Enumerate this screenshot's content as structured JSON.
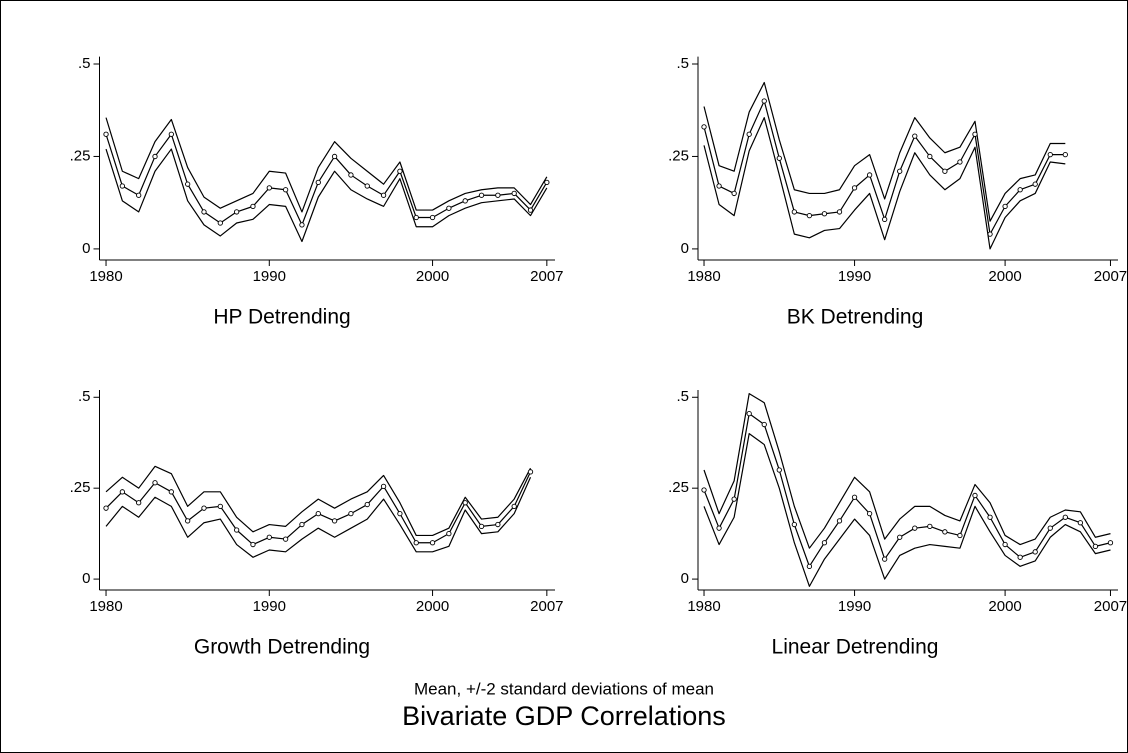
{
  "note": "Mean, +/-2 standard deviations of mean",
  "title": "Bivariate GDP Correlations",
  "chart_data": [
    {
      "type": "line",
      "title": "HP Detrending",
      "x": [
        1980,
        1981,
        1982,
        1983,
        1984,
        1985,
        1986,
        1987,
        1988,
        1989,
        1990,
        1991,
        1992,
        1993,
        1994,
        1995,
        1996,
        1997,
        1998,
        1999,
        2000,
        2001,
        2002,
        2003,
        2004,
        2005,
        2006,
        2007
      ],
      "xlim": [
        1979.6,
        2007.5
      ],
      "xticks": [
        1980,
        1990,
        2000,
        2007
      ],
      "ylim": [
        -0.03,
        0.52
      ],
      "yticks": [
        0,
        {
          "value": 0.25,
          "label": ".25"
        },
        {
          "value": 0.5,
          "label": ".5"
        }
      ],
      "series": [
        {
          "color": "#000000",
          "marker": false,
          "values": [
            0.355,
            0.21,
            0.19,
            0.29,
            0.35,
            0.22,
            0.14,
            0.11,
            0.13,
            0.15,
            0.21,
            0.205,
            0.1,
            0.22,
            0.29,
            0.245,
            0.21,
            0.175,
            0.235,
            0.105,
            0.105,
            0.13,
            0.15,
            0.16,
            0.165,
            0.165,
            0.12,
            0.195
          ]
        },
        {
          "color": "#000000",
          "marker": true,
          "values": [
            0.31,
            0.17,
            0.145,
            0.25,
            0.31,
            0.175,
            0.1,
            0.07,
            0.1,
            0.115,
            0.165,
            0.16,
            0.065,
            0.18,
            0.25,
            0.2,
            0.17,
            0.145,
            0.21,
            0.085,
            0.085,
            0.11,
            0.13,
            0.145,
            0.145,
            0.15,
            0.105,
            0.18
          ]
        },
        {
          "color": "#000000",
          "marker": false,
          "values": [
            0.27,
            0.13,
            0.1,
            0.21,
            0.27,
            0.13,
            0.065,
            0.035,
            0.07,
            0.08,
            0.12,
            0.115,
            0.02,
            0.14,
            0.21,
            0.16,
            0.135,
            0.115,
            0.19,
            0.06,
            0.06,
            0.09,
            0.11,
            0.125,
            0.13,
            0.135,
            0.09,
            0.165
          ]
        }
      ]
    },
    {
      "type": "line",
      "title": "BK Detrending",
      "x": [
        1980,
        1981,
        1982,
        1983,
        1984,
        1985,
        1986,
        1987,
        1988,
        1989,
        1990,
        1991,
        1992,
        1993,
        1994,
        1995,
        1996,
        1997,
        1998,
        1999,
        2000,
        2001,
        2002,
        2003,
        2004,
        2005,
        2006,
        2007
      ],
      "xlim": [
        1979.6,
        2007.5
      ],
      "xticks": [
        1980,
        1990,
        2000,
        2007
      ],
      "ylim": [
        -0.03,
        0.52
      ],
      "yticks": [
        0,
        {
          "value": 0.25,
          "label": ".25"
        },
        {
          "value": 0.5,
          "label": ".5"
        }
      ],
      "series": [
        {
          "color": "#000000",
          "marker": false,
          "values": [
            0.385,
            0.225,
            0.21,
            0.37,
            0.45,
            0.295,
            0.16,
            0.15,
            0.15,
            0.16,
            0.225,
            0.255,
            0.135,
            0.26,
            0.355,
            0.3,
            0.26,
            0.275,
            0.345,
            0.075,
            0.15,
            0.19,
            0.2,
            0.285,
            0.285,
            null,
            null,
            null
          ]
        },
        {
          "color": "#000000",
          "marker": true,
          "values": [
            0.33,
            0.17,
            0.15,
            0.31,
            0.4,
            0.245,
            0.1,
            0.09,
            0.095,
            0.1,
            0.165,
            0.2,
            0.08,
            0.21,
            0.305,
            0.25,
            0.21,
            0.235,
            0.31,
            0.04,
            0.115,
            0.16,
            0.175,
            0.255,
            0.255,
            null,
            null,
            null
          ]
        },
        {
          "color": "#000000",
          "marker": false,
          "values": [
            0.28,
            0.12,
            0.09,
            0.265,
            0.355,
            0.2,
            0.04,
            0.03,
            0.05,
            0.055,
            0.105,
            0.15,
            0.025,
            0.155,
            0.26,
            0.2,
            0.16,
            0.19,
            0.275,
            0,
            0.085,
            0.13,
            0.15,
            0.235,
            0.23,
            null,
            null,
            null
          ]
        }
      ]
    },
    {
      "type": "line",
      "title": "Growth Detrending",
      "x": [
        1980,
        1981,
        1982,
        1983,
        1984,
        1985,
        1986,
        1987,
        1988,
        1989,
        1990,
        1991,
        1992,
        1993,
        1994,
        1995,
        1996,
        1997,
        1998,
        1999,
        2000,
        2001,
        2002,
        2003,
        2004,
        2005,
        2006,
        2007
      ],
      "xlim": [
        1979.6,
        2007.5
      ],
      "xticks": [
        1980,
        1990,
        2000,
        2007
      ],
      "ylim": [
        -0.03,
        0.52
      ],
      "yticks": [
        0,
        {
          "value": 0.25,
          "label": ".25"
        },
        {
          "value": 0.5,
          "label": ".5"
        }
      ],
      "series": [
        {
          "color": "#000000",
          "marker": false,
          "values": [
            0.24,
            0.28,
            0.25,
            0.31,
            0.29,
            0.2,
            0.24,
            0.24,
            0.17,
            0.13,
            0.15,
            0.145,
            0.185,
            0.22,
            0.195,
            0.22,
            0.24,
            0.285,
            0.21,
            0.12,
            0.12,
            0.14,
            0.225,
            0.165,
            0.17,
            0.22,
            0.305,
            null
          ]
        },
        {
          "color": "#000000",
          "marker": true,
          "values": [
            0.195,
            0.24,
            0.21,
            0.265,
            0.24,
            0.16,
            0.195,
            0.2,
            0.135,
            0.095,
            0.115,
            0.11,
            0.15,
            0.18,
            0.16,
            0.18,
            0.205,
            0.255,
            0.18,
            0.1,
            0.1,
            0.125,
            0.21,
            0.145,
            0.15,
            0.2,
            0.295,
            null
          ]
        },
        {
          "color": "#000000",
          "marker": false,
          "values": [
            0.145,
            0.2,
            0.17,
            0.225,
            0.2,
            0.115,
            0.155,
            0.165,
            0.095,
            0.06,
            0.08,
            0.075,
            0.11,
            0.14,
            0.115,
            0.14,
            0.165,
            0.22,
            0.15,
            0.075,
            0.075,
            0.09,
            0.19,
            0.125,
            0.13,
            0.18,
            0.28,
            null
          ]
        }
      ]
    },
    {
      "type": "line",
      "title": "Linear Detrending",
      "x": [
        1980,
        1981,
        1982,
        1983,
        1984,
        1985,
        1986,
        1987,
        1988,
        1989,
        1990,
        1991,
        1992,
        1993,
        1994,
        1995,
        1996,
        1997,
        1998,
        1999,
        2000,
        2001,
        2002,
        2003,
        2004,
        2005,
        2006,
        2007
      ],
      "xlim": [
        1979.6,
        2007.5
      ],
      "xticks": [
        1980,
        1990,
        2000,
        2007
      ],
      "ylim": [
        -0.03,
        0.52
      ],
      "yticks": [
        0,
        {
          "value": 0.25,
          "label": ".25"
        },
        {
          "value": 0.5,
          "label": ".5"
        }
      ],
      "series": [
        {
          "color": "#000000",
          "marker": false,
          "values": [
            0.3,
            0.18,
            0.27,
            0.51,
            0.485,
            0.35,
            0.2,
            0.085,
            0.14,
            0.21,
            0.28,
            0.24,
            0.11,
            0.165,
            0.2,
            0.2,
            0.175,
            0.16,
            0.26,
            0.21,
            0.12,
            0.095,
            0.11,
            0.17,
            0.19,
            0.185,
            0.115,
            0.125
          ]
        },
        {
          "color": "#000000",
          "marker": true,
          "values": [
            0.245,
            0.14,
            0.22,
            0.455,
            0.425,
            0.3,
            0.15,
            0.035,
            0.1,
            0.16,
            0.225,
            0.18,
            0.055,
            0.115,
            0.14,
            0.145,
            0.13,
            0.12,
            0.23,
            0.17,
            0.095,
            0.06,
            0.075,
            0.14,
            0.17,
            0.155,
            0.09,
            0.1
          ]
        },
        {
          "color": "#000000",
          "marker": false,
          "values": [
            0.2,
            0.095,
            0.17,
            0.4,
            0.37,
            0.25,
            0.1,
            -0.02,
            0.055,
            0.11,
            0.165,
            0.12,
            0,
            0.065,
            0.085,
            0.095,
            0.09,
            0.085,
            0.2,
            0.13,
            0.065,
            0.035,
            0.05,
            0.115,
            0.15,
            0.13,
            0.07,
            0.08
          ]
        }
      ]
    }
  ]
}
